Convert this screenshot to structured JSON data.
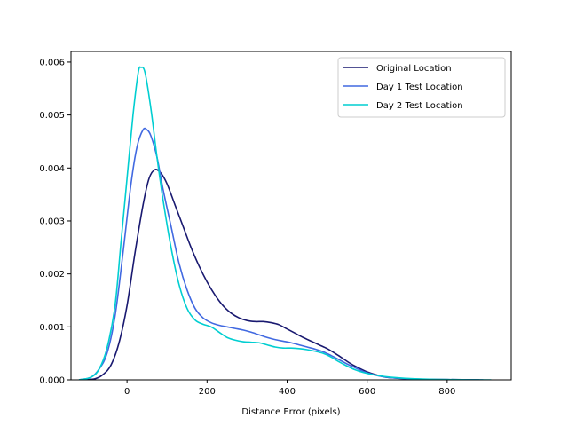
{
  "chart_data": {
    "type": "line",
    "title": "",
    "xlabel": "Distance Error (pixels)",
    "ylabel": "",
    "xlim": [
      -140,
      960
    ],
    "ylim": [
      0,
      0.0062
    ],
    "x_ticks": [
      0,
      200,
      400,
      600,
      800
    ],
    "x_tick_labels": [
      "0",
      "200",
      "400",
      "600",
      "800"
    ],
    "y_ticks": [
      0,
      0.001,
      0.002,
      0.003,
      0.004,
      0.005,
      0.006
    ],
    "y_tick_labels": [
      "0.000",
      "0.001",
      "0.002",
      "0.003",
      "0.004",
      "0.005",
      "0.006"
    ],
    "grid": false,
    "legend_position": "top-right",
    "series": [
      {
        "name": "Original Location",
        "color": "#191970",
        "points": [
          [
            -110,
            0
          ],
          [
            -80,
            2e-05
          ],
          [
            -60,
            0.0001
          ],
          [
            -40,
            0.00028
          ],
          [
            -20,
            0.0007
          ],
          [
            0,
            0.0014
          ],
          [
            20,
            0.0024
          ],
          [
            40,
            0.0033
          ],
          [
            55,
            0.0038
          ],
          [
            70,
            0.00397
          ],
          [
            85,
            0.0039
          ],
          [
            100,
            0.0037
          ],
          [
            120,
            0.0033
          ],
          [
            140,
            0.0029
          ],
          [
            160,
            0.0025
          ],
          [
            180,
            0.00215
          ],
          [
            200,
            0.00185
          ],
          [
            220,
            0.0016
          ],
          [
            240,
            0.0014
          ],
          [
            260,
            0.00126
          ],
          [
            280,
            0.00117
          ],
          [
            300,
            0.00112
          ],
          [
            320,
            0.0011
          ],
          [
            340,
            0.0011
          ],
          [
            360,
            0.00108
          ],
          [
            380,
            0.00104
          ],
          [
            400,
            0.00096
          ],
          [
            420,
            0.00088
          ],
          [
            440,
            0.0008
          ],
          [
            460,
            0.00073
          ],
          [
            480,
            0.00066
          ],
          [
            500,
            0.00059
          ],
          [
            520,
            0.0005
          ],
          [
            540,
            0.0004
          ],
          [
            560,
            0.0003
          ],
          [
            580,
            0.00022
          ],
          [
            600,
            0.00015
          ],
          [
            620,
            0.0001
          ],
          [
            640,
            6e-05
          ],
          [
            660,
            4e-05
          ],
          [
            700,
            2e-05
          ],
          [
            750,
            1e-05
          ],
          [
            800,
            5e-06
          ],
          [
            880,
            0
          ]
        ]
      },
      {
        "name": "Day 1 Test Location",
        "color": "#4169e1",
        "points": [
          [
            -120,
            0
          ],
          [
            -90,
            5e-05
          ],
          [
            -70,
            0.0002
          ],
          [
            -50,
            0.0005
          ],
          [
            -30,
            0.0012
          ],
          [
            -10,
            0.0024
          ],
          [
            10,
            0.0037
          ],
          [
            25,
            0.0044
          ],
          [
            40,
            0.00472
          ],
          [
            50,
            0.00472
          ],
          [
            60,
            0.0046
          ],
          [
            75,
            0.0042
          ],
          [
            90,
            0.0036
          ],
          [
            110,
            0.0029
          ],
          [
            130,
            0.0022
          ],
          [
            150,
            0.0017
          ],
          [
            170,
            0.00135
          ],
          [
            190,
            0.00117
          ],
          [
            210,
            0.00108
          ],
          [
            230,
            0.00103
          ],
          [
            250,
            0.001
          ],
          [
            270,
            0.00097
          ],
          [
            290,
            0.00094
          ],
          [
            310,
            0.0009
          ],
          [
            330,
            0.00085
          ],
          [
            350,
            0.0008
          ],
          [
            370,
            0.00076
          ],
          [
            390,
            0.00073
          ],
          [
            410,
            0.0007
          ],
          [
            430,
            0.00066
          ],
          [
            450,
            0.00062
          ],
          [
            470,
            0.00058
          ],
          [
            490,
            0.00053
          ],
          [
            510,
            0.00046
          ],
          [
            530,
            0.00038
          ],
          [
            550,
            0.0003
          ],
          [
            570,
            0.00023
          ],
          [
            590,
            0.00016
          ],
          [
            610,
            0.00011
          ],
          [
            640,
            6e-05
          ],
          [
            680,
            3e-05
          ],
          [
            740,
            1e-05
          ],
          [
            800,
            5e-06
          ],
          [
            890,
            0
          ]
        ]
      },
      {
        "name": "Day 2 Test Location",
        "color": "#00ced1",
        "points": [
          [
            -120,
            0
          ],
          [
            -90,
            5e-05
          ],
          [
            -70,
            0.0002
          ],
          [
            -50,
            0.0006
          ],
          [
            -30,
            0.0014
          ],
          [
            -15,
            0.0026
          ],
          [
            0,
            0.0038
          ],
          [
            15,
            0.005
          ],
          [
            28,
            0.0058
          ],
          [
            35,
            0.0059
          ],
          [
            45,
            0.0058
          ],
          [
            60,
            0.0051
          ],
          [
            75,
            0.0042
          ],
          [
            90,
            0.0034
          ],
          [
            110,
            0.0025
          ],
          [
            130,
            0.0018
          ],
          [
            150,
            0.00135
          ],
          [
            170,
            0.00113
          ],
          [
            190,
            0.00105
          ],
          [
            210,
            0.001
          ],
          [
            230,
            0.0009
          ],
          [
            250,
            0.0008
          ],
          [
            270,
            0.00075
          ],
          [
            290,
            0.00072
          ],
          [
            310,
            0.00071
          ],
          [
            330,
            0.0007
          ],
          [
            350,
            0.00066
          ],
          [
            370,
            0.00062
          ],
          [
            390,
            0.0006
          ],
          [
            410,
            0.0006
          ],
          [
            430,
            0.00059
          ],
          [
            450,
            0.00057
          ],
          [
            470,
            0.00054
          ],
          [
            490,
            0.0005
          ],
          [
            510,
            0.00043
          ],
          [
            530,
            0.00034
          ],
          [
            550,
            0.00026
          ],
          [
            570,
            0.00019
          ],
          [
            590,
            0.00014
          ],
          [
            620,
            9e-05
          ],
          [
            660,
            5e-05
          ],
          [
            720,
            2e-05
          ],
          [
            800,
            5e-06
          ],
          [
            910,
            0
          ]
        ]
      }
    ]
  }
}
